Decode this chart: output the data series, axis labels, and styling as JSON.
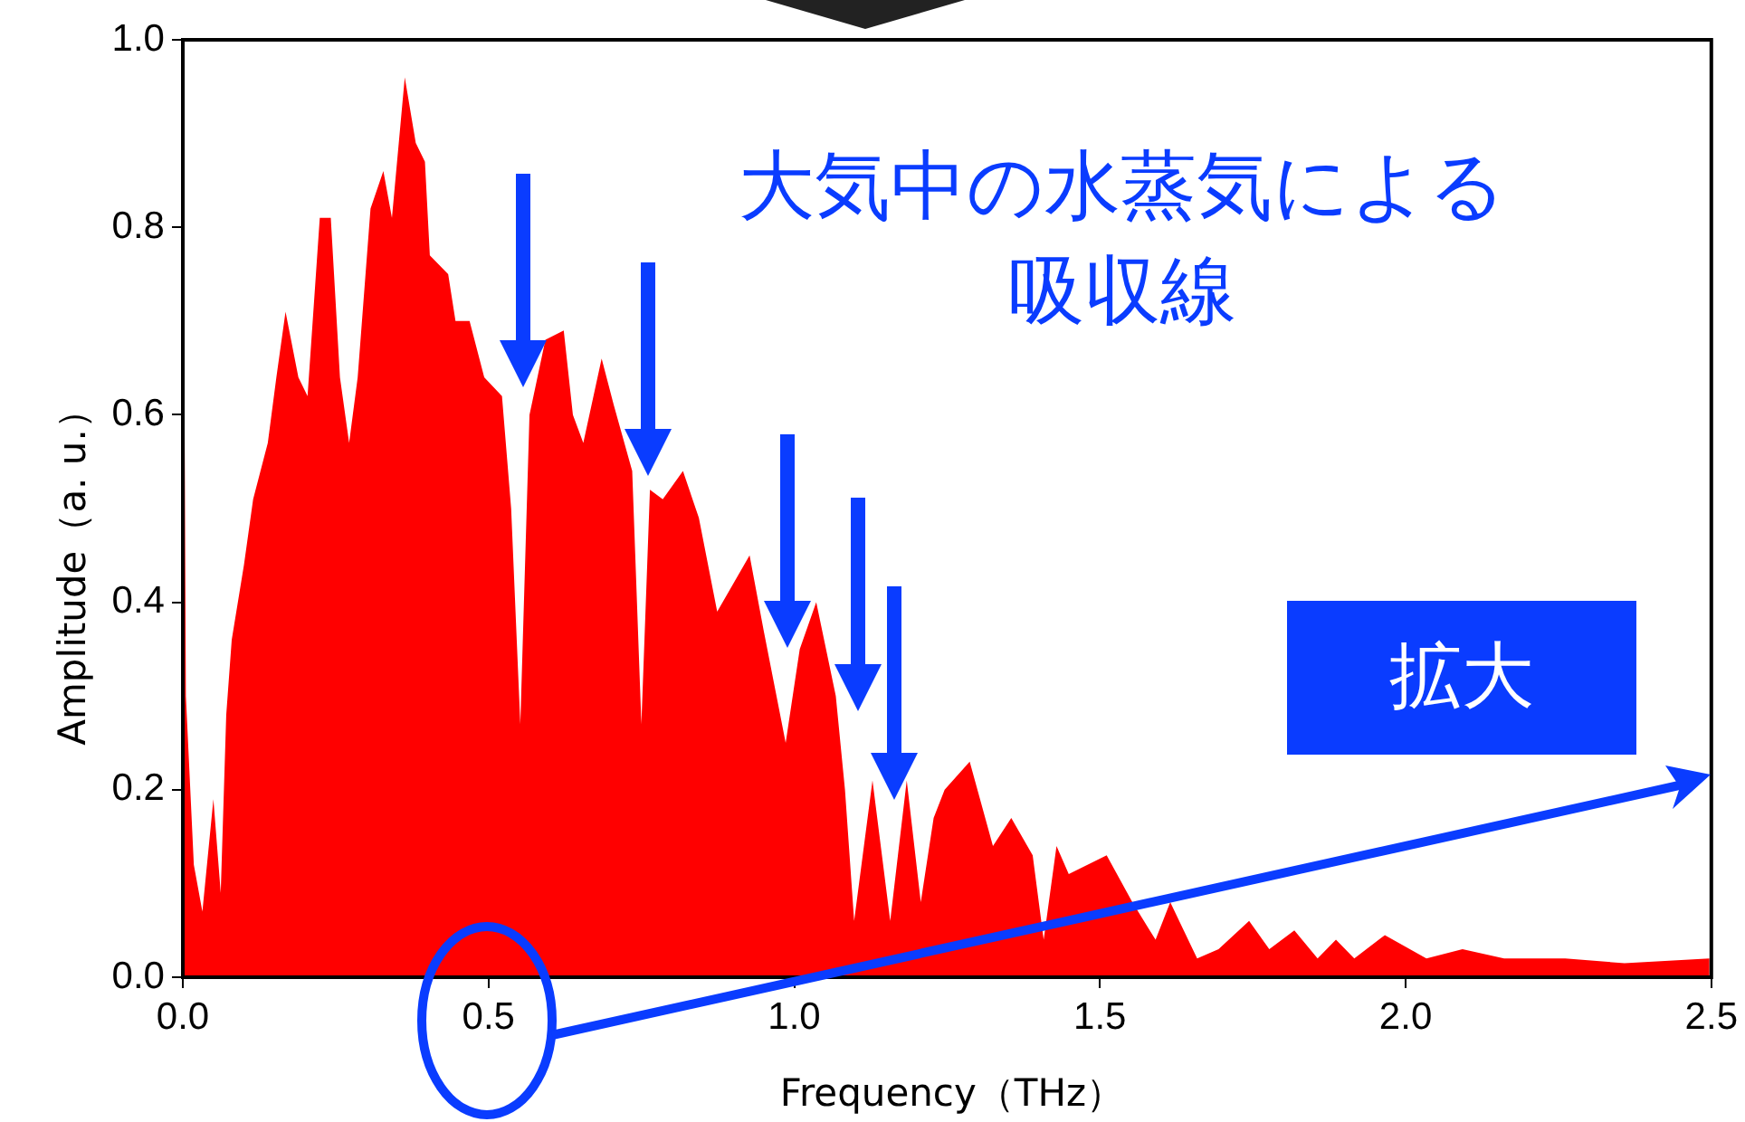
{
  "chart_data": {
    "type": "area",
    "xlabel": "Frequency（THz）",
    "ylabel": "Amplitude（a. u.）",
    "color": "#ff0000",
    "marker": "none",
    "x": [
      0,
      0.005,
      0.018,
      0.032,
      0.05,
      0.062,
      0.071,
      0.08,
      0.1,
      0.115,
      0.139,
      0.153,
      0.168,
      0.189,
      0.204,
      0.224,
      0.242,
      0.257,
      0.272,
      0.286,
      0.307,
      0.328,
      0.342,
      0.363,
      0.381,
      0.396,
      0.404,
      0.434,
      0.446,
      0.469,
      0.493,
      0.522,
      0.537,
      0.552,
      0.567,
      0.593,
      0.623,
      0.638,
      0.655,
      0.685,
      0.705,
      0.735,
      0.75,
      0.764,
      0.785,
      0.818,
      0.844,
      0.874,
      0.927,
      0.95,
      0.986,
      1.009,
      1.036,
      1.068,
      1.083,
      1.098,
      1.128,
      1.157,
      1.184,
      1.207,
      1.228,
      1.246,
      1.287,
      1.325,
      1.355,
      1.39,
      1.408,
      1.429,
      1.449,
      1.511,
      1.553,
      1.591,
      1.615,
      1.659,
      1.694,
      1.744,
      1.777,
      1.818,
      1.856,
      1.886,
      1.916,
      1.966,
      2.034,
      2.093,
      2.161,
      2.261,
      2.358,
      2.497
    ],
    "values": [
      1.0,
      0.3,
      0.12,
      0.07,
      0.19,
      0.09,
      0.28,
      0.36,
      0.44,
      0.51,
      0.57,
      0.64,
      0.71,
      0.64,
      0.62,
      0.81,
      0.81,
      0.64,
      0.57,
      0.64,
      0.82,
      0.86,
      0.81,
      0.96,
      0.89,
      0.87,
      0.77,
      0.75,
      0.7,
      0.7,
      0.64,
      0.62,
      0.5,
      0.27,
      0.6,
      0.68,
      0.69,
      0.6,
      0.57,
      0.66,
      0.61,
      0.54,
      0.27,
      0.52,
      0.51,
      0.54,
      0.49,
      0.39,
      0.45,
      0.37,
      0.25,
      0.35,
      0.4,
      0.3,
      0.2,
      0.06,
      0.21,
      0.06,
      0.21,
      0.08,
      0.17,
      0.2,
      0.23,
      0.14,
      0.17,
      0.13,
      0.04,
      0.14,
      0.11,
      0.13,
      0.08,
      0.04,
      0.08,
      0.02,
      0.03,
      0.06,
      0.03,
      0.05,
      0.02,
      0.04,
      0.02,
      0.045,
      0.02,
      0.03,
      0.02,
      0.02,
      0.015,
      0.02
    ],
    "xlim": [
      0,
      2.5
    ],
    "ylim": [
      0,
      1.0
    ],
    "xticks": [
      {
        "value": 0,
        "label": "0.0"
      },
      {
        "value": 0.5,
        "label": "0.5"
      },
      {
        "value": 1,
        "label": "1.0"
      },
      {
        "value": 1.5,
        "label": "1.5"
      },
      {
        "value": 2,
        "label": "2.0"
      },
      {
        "value": 2.5,
        "label": "2.5"
      }
    ],
    "yticks": [
      {
        "value": 0,
        "label": "0.0"
      },
      {
        "value": 0.2,
        "label": "0.2"
      },
      {
        "value": 0.4,
        "label": "0.4"
      },
      {
        "value": 0.6,
        "label": "0.6"
      },
      {
        "value": 0.8,
        "label": "0.8"
      },
      {
        "value": 1,
        "label": "1.0"
      }
    ],
    "annotations": [
      "大気中の水蒸気による吸収線",
      "拡大"
    ]
  }
}
